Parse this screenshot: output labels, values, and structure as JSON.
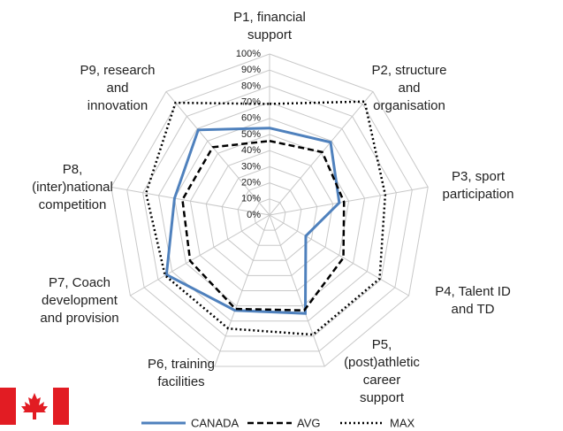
{
  "chart_data": {
    "type": "radar",
    "categories": [
      "P1, financial\nsupport",
      "P2, structure\nand\norganisation",
      "P3, sport\nparticipation",
      "P4, Talent ID\nand TD",
      "P5,\n(post)athletic\ncareer\nsupport",
      "P6, training\nfacilities",
      "P7, Coach\ndevelopment\nand provision",
      "P8,\n(inter)national\ncompetition",
      "P9, research\nand\ninnovation"
    ],
    "series": [
      {
        "name": "CANADA",
        "color": "#4f81bd",
        "style": "solid",
        "values": [
          54,
          59,
          44,
          26,
          65,
          63,
          74,
          60,
          69
        ]
      },
      {
        "name": "AVG",
        "color": "#000000",
        "style": "dashed",
        "values": [
          46,
          51,
          47,
          53,
          63,
          62,
          57,
          55,
          55
        ]
      },
      {
        "name": "MAX",
        "color": "#000000",
        "style": "dotted",
        "values": [
          69,
          92,
          73,
          79,
          79,
          75,
          75,
          78,
          91
        ]
      }
    ],
    "rlim": [
      0,
      100
    ],
    "rticks": [
      {
        "value": 0,
        "label": "0%"
      },
      {
        "value": 10,
        "label": "10%"
      },
      {
        "value": 20,
        "label": "20%"
      },
      {
        "value": 30,
        "label": "30%"
      },
      {
        "value": 40,
        "label": "40%"
      },
      {
        "value": 50,
        "label": "50%"
      },
      {
        "value": 60,
        "label": "60%"
      },
      {
        "value": 70,
        "label": "70%"
      },
      {
        "value": 80,
        "label": "80%"
      },
      {
        "value": 90,
        "label": "90%"
      },
      {
        "value": 100,
        "label": "100%"
      }
    ],
    "grid": true,
    "legend": "bottom"
  }
}
